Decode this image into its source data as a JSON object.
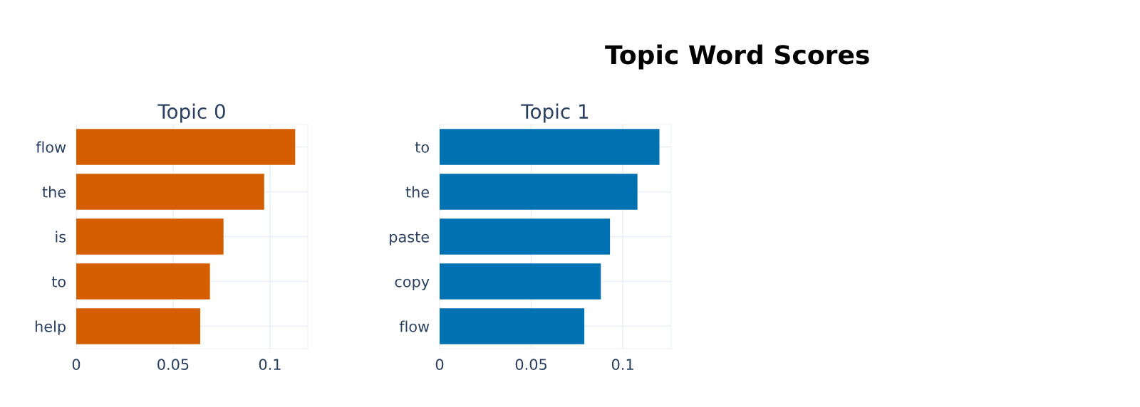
{
  "chart_data": [
    {
      "type": "bar",
      "orientation": "horizontal",
      "title": "Topic 0",
      "annotations": [
        "Topic Word Scores"
      ],
      "categories": [
        "flow",
        "the",
        "is",
        "to",
        "help"
      ],
      "color": "#d55e00",
      "values": [
        0.113,
        0.097,
        0.076,
        0.069,
        0.064
      ],
      "xlim": [
        0,
        0.1195
      ],
      "xticks": [
        0,
        0.05,
        0.1
      ],
      "grid": true
    },
    {
      "type": "bar",
      "orientation": "horizontal",
      "title": "Topic 1",
      "categories": [
        "to",
        "the",
        "paste",
        "copy",
        "flow"
      ],
      "color": "#0072b2",
      "values": [
        0.12,
        0.108,
        0.093,
        0.088,
        0.079
      ],
      "xlim": [
        0,
        0.1264
      ],
      "xticks": [
        0,
        0.05,
        0.1
      ],
      "grid": true
    }
  ]
}
